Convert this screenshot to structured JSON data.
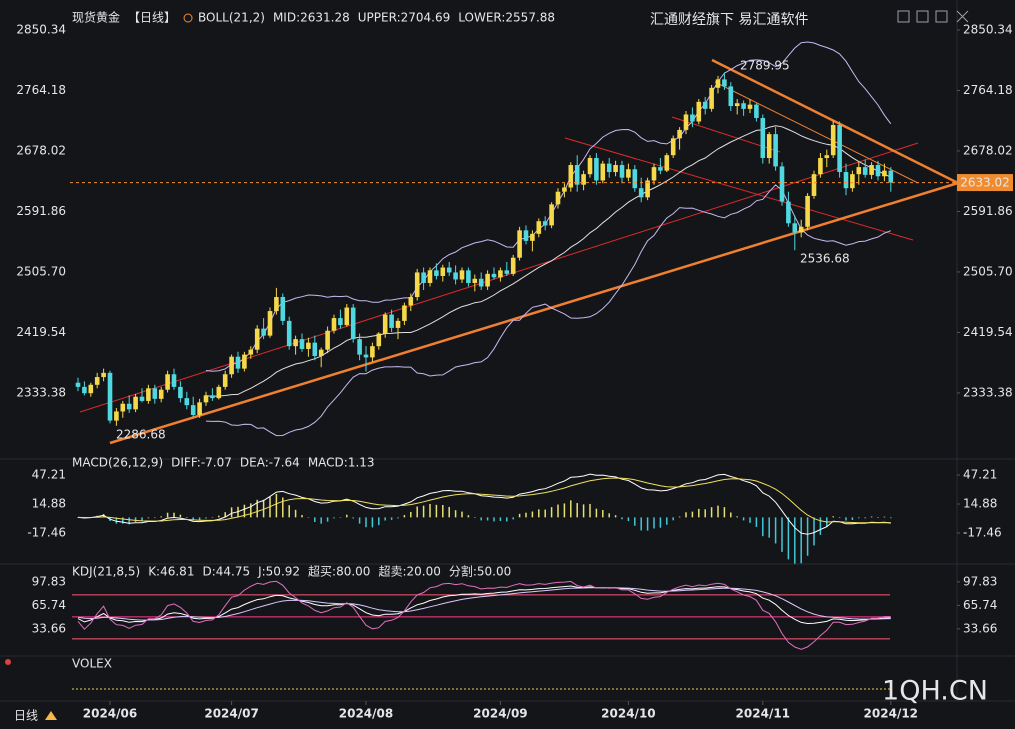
{
  "chart_data": {
    "type": "candlestick",
    "title": "现货黄金",
    "period": "【日线】",
    "indicator_labels": [
      {
        "text": "BOLL(21,2)",
        "color": "#e8e8e8"
      },
      {
        "text": "MID:2631.28",
        "color": "#e8e8e8"
      },
      {
        "text": "UPPER:2704.69",
        "color": "#d9a6f0"
      },
      {
        "text": "LOWER:2557.88",
        "color": "#c8a0ff"
      }
    ],
    "watermark": "汇通财经旗下 易汇通软件",
    "brand": "1QH.CN",
    "period_button": "日线",
    "colors": {
      "up": "#f5d94a",
      "down": "#4fd8e0",
      "boll_band": "#c8b8f0",
      "boll_mid": "#e0e0e0"
    },
    "ylim": [
      2245.0,
      2878.8
    ],
    "yticks": [
      2850.34,
      2764.18,
      2678.02,
      2591.86,
      {
        "value": 2505.7,
        "label": "2505.70"
      },
      2419.54,
      2333.38
    ],
    "xticks": [
      {
        "value": 5,
        "label": "2024/06"
      },
      {
        "value": 24,
        "label": "2024/07"
      },
      {
        "value": 45,
        "label": "2024/08"
      },
      {
        "value": 66,
        "label": "2024/09"
      },
      {
        "value": 86,
        "label": "2024/10"
      },
      {
        "value": 107,
        "label": "2024/11"
      },
      {
        "value": 127,
        "label": "2024/12"
      }
    ],
    "ohlc": [
      [
        2348,
        2355,
        2336,
        2342
      ],
      [
        2342,
        2350,
        2330,
        2333
      ],
      [
        2333,
        2348,
        2328,
        2345
      ],
      [
        2345,
        2362,
        2340,
        2356
      ],
      [
        2356,
        2368,
        2350,
        2362
      ],
      [
        2362,
        2365,
        2290,
        2294
      ],
      [
        2294,
        2312,
        2286.68,
        2307
      ],
      [
        2307,
        2322,
        2298,
        2318
      ],
      [
        2318,
        2330,
        2305,
        2310
      ],
      [
        2310,
        2332,
        2306,
        2328
      ],
      [
        2328,
        2340,
        2320,
        2322
      ],
      [
        2322,
        2345,
        2318,
        2340
      ],
      [
        2340,
        2345,
        2318,
        2325
      ],
      [
        2325,
        2342,
        2320,
        2338
      ],
      [
        2338,
        2365,
        2334,
        2360
      ],
      [
        2360,
        2368,
        2338,
        2342
      ],
      [
        2342,
        2350,
        2320,
        2326
      ],
      [
        2326,
        2335,
        2310,
        2316
      ],
      [
        2316,
        2328,
        2298,
        2302
      ],
      [
        2302,
        2325,
        2298,
        2320
      ],
      [
        2320,
        2335,
        2315,
        2330
      ],
      [
        2330,
        2340,
        2322,
        2326
      ],
      [
        2326,
        2345,
        2324,
        2342
      ],
      [
        2342,
        2365,
        2338,
        2360
      ],
      [
        2360,
        2388,
        2355,
        2385
      ],
      [
        2385,
        2392,
        2362,
        2368
      ],
      [
        2368,
        2392,
        2364,
        2388
      ],
      [
        2388,
        2400,
        2382,
        2395
      ],
      [
        2395,
        2430,
        2390,
        2425
      ],
      [
        2425,
        2440,
        2410,
        2415
      ],
      [
        2415,
        2455,
        2412,
        2450
      ],
      [
        2450,
        2483,
        2445,
        2470
      ],
      [
        2470,
        2475,
        2430,
        2436
      ],
      [
        2436,
        2442,
        2395,
        2400
      ],
      [
        2400,
        2415,
        2388,
        2410
      ],
      [
        2410,
        2418,
        2392,
        2396
      ],
      [
        2396,
        2412,
        2385,
        2405
      ],
      [
        2405,
        2415,
        2380,
        2386
      ],
      [
        2386,
        2398,
        2370,
        2395
      ],
      [
        2395,
        2428,
        2390,
        2422
      ],
      [
        2422,
        2445,
        2418,
        2440
      ],
      [
        2440,
        2452,
        2425,
        2430
      ],
      [
        2430,
        2460,
        2428,
        2455
      ],
      [
        2455,
        2460,
        2405,
        2410
      ],
      [
        2410,
        2418,
        2380,
        2388
      ],
      [
        2388,
        2400,
        2364,
        2384
      ],
      [
        2384,
        2405,
        2378,
        2400
      ],
      [
        2400,
        2420,
        2395,
        2418
      ],
      [
        2418,
        2448,
        2412,
        2445
      ],
      [
        2445,
        2452,
        2420,
        2426
      ],
      [
        2426,
        2440,
        2410,
        2436
      ],
      [
        2436,
        2462,
        2430,
        2458
      ],
      [
        2458,
        2475,
        2450,
        2470
      ],
      [
        2470,
        2510,
        2465,
        2505
      ],
      [
        2505,
        2512,
        2480,
        2490
      ],
      [
        2490,
        2512,
        2485,
        2508
      ],
      [
        2508,
        2518,
        2495,
        2500
      ],
      [
        2500,
        2516,
        2492,
        2512
      ],
      [
        2512,
        2520,
        2500,
        2505
      ],
      [
        2505,
        2515,
        2488,
        2495
      ],
      [
        2495,
        2512,
        2490,
        2508
      ],
      [
        2508,
        2512,
        2485,
        2490
      ],
      [
        2490,
        2502,
        2478,
        2496
      ],
      [
        2496,
        2505,
        2480,
        2485
      ],
      [
        2485,
        2508,
        2480,
        2503
      ],
      [
        2503,
        2512,
        2495,
        2498
      ],
      [
        2498,
        2512,
        2492,
        2508
      ],
      [
        2508,
        2520,
        2500,
        2503
      ],
      [
        2503,
        2530,
        2500,
        2526
      ],
      [
        2526,
        2570,
        2522,
        2565
      ],
      [
        2565,
        2572,
        2545,
        2550
      ],
      [
        2550,
        2565,
        2535,
        2560
      ],
      [
        2560,
        2582,
        2555,
        2578
      ],
      [
        2578,
        2585,
        2565,
        2572
      ],
      [
        2572,
        2605,
        2568,
        2602
      ],
      [
        2602,
        2625,
        2596,
        2620
      ],
      [
        2620,
        2632,
        2612,
        2626
      ],
      [
        2626,
        2662,
        2620,
        2658
      ],
      [
        2658,
        2672,
        2620,
        2630
      ],
      [
        2630,
        2650,
        2622,
        2645
      ],
      [
        2645,
        2672,
        2640,
        2668
      ],
      [
        2668,
        2675,
        2630,
        2636
      ],
      [
        2636,
        2664,
        2632,
        2660
      ],
      [
        2660,
        2668,
        2640,
        2648
      ],
      [
        2648,
        2664,
        2642,
        2658
      ],
      [
        2658,
        2664,
        2632,
        2640
      ],
      [
        2640,
        2660,
        2635,
        2652
      ],
      [
        2652,
        2658,
        2620,
        2625
      ],
      [
        2625,
        2640,
        2605,
        2612
      ],
      [
        2612,
        2640,
        2608,
        2636
      ],
      [
        2636,
        2660,
        2630,
        2655
      ],
      [
        2655,
        2668,
        2645,
        2650
      ],
      [
        2650,
        2675,
        2648,
        2672
      ],
      [
        2672,
        2700,
        2668,
        2696
      ],
      [
        2696,
        2712,
        2680,
        2708
      ],
      [
        2708,
        2735,
        2702,
        2730
      ],
      [
        2730,
        2740,
        2712,
        2720
      ],
      [
        2720,
        2752,
        2716,
        2748
      ],
      [
        2748,
        2755,
        2730,
        2738
      ],
      [
        2738,
        2772,
        2734,
        2768
      ],
      [
        2768,
        2785,
        2760,
        2780
      ],
      [
        2780,
        2789.95,
        2765,
        2770
      ],
      [
        2770,
        2776,
        2735,
        2742
      ],
      [
        2742,
        2752,
        2730,
        2746
      ],
      [
        2746,
        2750,
        2728,
        2738
      ],
      [
        2738,
        2752,
        2732,
        2744
      ],
      [
        2744,
        2746,
        2720,
        2725
      ],
      [
        2725,
        2730,
        2660,
        2668
      ],
      [
        2668,
        2705,
        2660,
        2702
      ],
      [
        2702,
        2712,
        2650,
        2656
      ],
      [
        2656,
        2662,
        2600,
        2606
      ],
      [
        2606,
        2620,
        2570,
        2575
      ],
      [
        2575,
        2586,
        2536.68,
        2562
      ],
      [
        2562,
        2580,
        2555,
        2570
      ],
      [
        2570,
        2618,
        2565,
        2614
      ],
      [
        2614,
        2650,
        2610,
        2645
      ],
      [
        2645,
        2675,
        2640,
        2668
      ],
      [
        2668,
        2680,
        2655,
        2672
      ],
      [
        2672,
        2721,
        2668,
        2715
      ],
      [
        2715,
        2720,
        2640,
        2648
      ],
      [
        2648,
        2660,
        2615,
        2625
      ],
      [
        2625,
        2650,
        2620,
        2645
      ],
      [
        2645,
        2662,
        2630,
        2655
      ],
      [
        2655,
        2666,
        2640,
        2644
      ],
      [
        2644,
        2662,
        2638,
        2658
      ],
      [
        2658,
        2664,
        2636,
        2642
      ],
      [
        2642,
        2660,
        2635,
        2650
      ],
      [
        2650,
        2655,
        2620,
        2633.02
      ]
    ],
    "macd": {
      "labels": [
        {
          "text": "MACD(26,12,9)",
          "color": "#e8e8e8"
        },
        {
          "text": "DIFF:-7.07",
          "color": "#e8e8e8"
        },
        {
          "text": "DEA:-7.64",
          "color": "#f0e060"
        },
        {
          "text": "MACD:1.13",
          "color": "#e070c0"
        }
      ],
      "colors": {
        "diff": "#ffffff",
        "dea": "#f0e060",
        "up": "#e8e070",
        "down": "#40c8d8"
      },
      "ylim": [
        -49.8,
        58.4
      ],
      "yticks": [
        47.21,
        14.88,
        -17.46
      ]
    },
    "kdj": {
      "labels": [
        {
          "text": "KDJ(21,8,5)",
          "color": "#e8e8e8"
        },
        {
          "text": "K:46.81",
          "color": "#e8e8e8"
        },
        {
          "text": "D:44.75",
          "color": "#f0e060"
        },
        {
          "text": "J:50.92",
          "color": "#e070c0"
        }
      ],
      "levels": [
        {
          "value": 80,
          "label": "超买:80.00",
          "color": "#ff5a78"
        },
        {
          "value": 20,
          "label": "超卖:20.00",
          "color": "#ff5a78"
        },
        {
          "value": 50,
          "label": "分割:50.00",
          "color": "#ff3c8c"
        }
      ],
      "colors": {
        "k": "#ffffff",
        "d": "#d8c8ff",
        "j": "#e070c0"
      },
      "ylim": [
        -2,
        114
      ],
      "yticks": [
        97.83,
        65.74,
        33.66
      ]
    },
    "volex": "VOLEX"
  }
}
